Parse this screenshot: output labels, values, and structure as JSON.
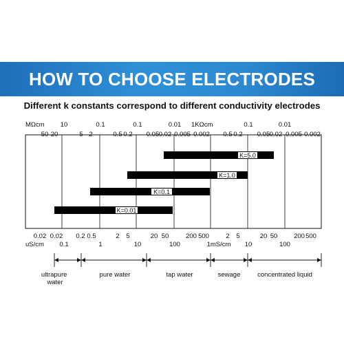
{
  "banner": {
    "title": "HOW TO CHOOSE ELECTRODES"
  },
  "subtitle": "Different k constants correspond to different conductivity electrodes",
  "top_axis": {
    "unit_row1": [
      "MΩcm",
      "1KΩcm"
    ],
    "row1": [
      "10",
      "0.1",
      "0.1",
      "0.01",
      "0.1",
      "0.01"
    ],
    "row2": [
      "50",
      "20",
      "5",
      "2",
      "0.5",
      "0.2",
      "0.05",
      "0.02",
      "0.005",
      "0.002",
      "0.5",
      "0.2",
      "0.05",
      "0.02",
      "0.005",
      "0.002"
    ]
  },
  "bottom_axis": {
    "row1": [
      "0.02",
      "0.02",
      "0.2",
      "0.5",
      "2",
      "5",
      "20",
      "50",
      "200",
      "500",
      "2",
      "5",
      "20",
      "50",
      "200",
      "500"
    ],
    "row2": [
      "uS/cm",
      "0.1",
      "1",
      "10",
      "100",
      "1mS/cm",
      "10",
      "100"
    ]
  },
  "electrodes": [
    {
      "label": "K=5.0"
    },
    {
      "label": "K=1.0"
    },
    {
      "label": "K=0.1"
    },
    {
      "label": "K=0.01"
    }
  ],
  "water_types": [
    "ultrapure\nwater",
    "pure water",
    "tap water",
    "sewage",
    "concentrated liquid"
  ]
}
